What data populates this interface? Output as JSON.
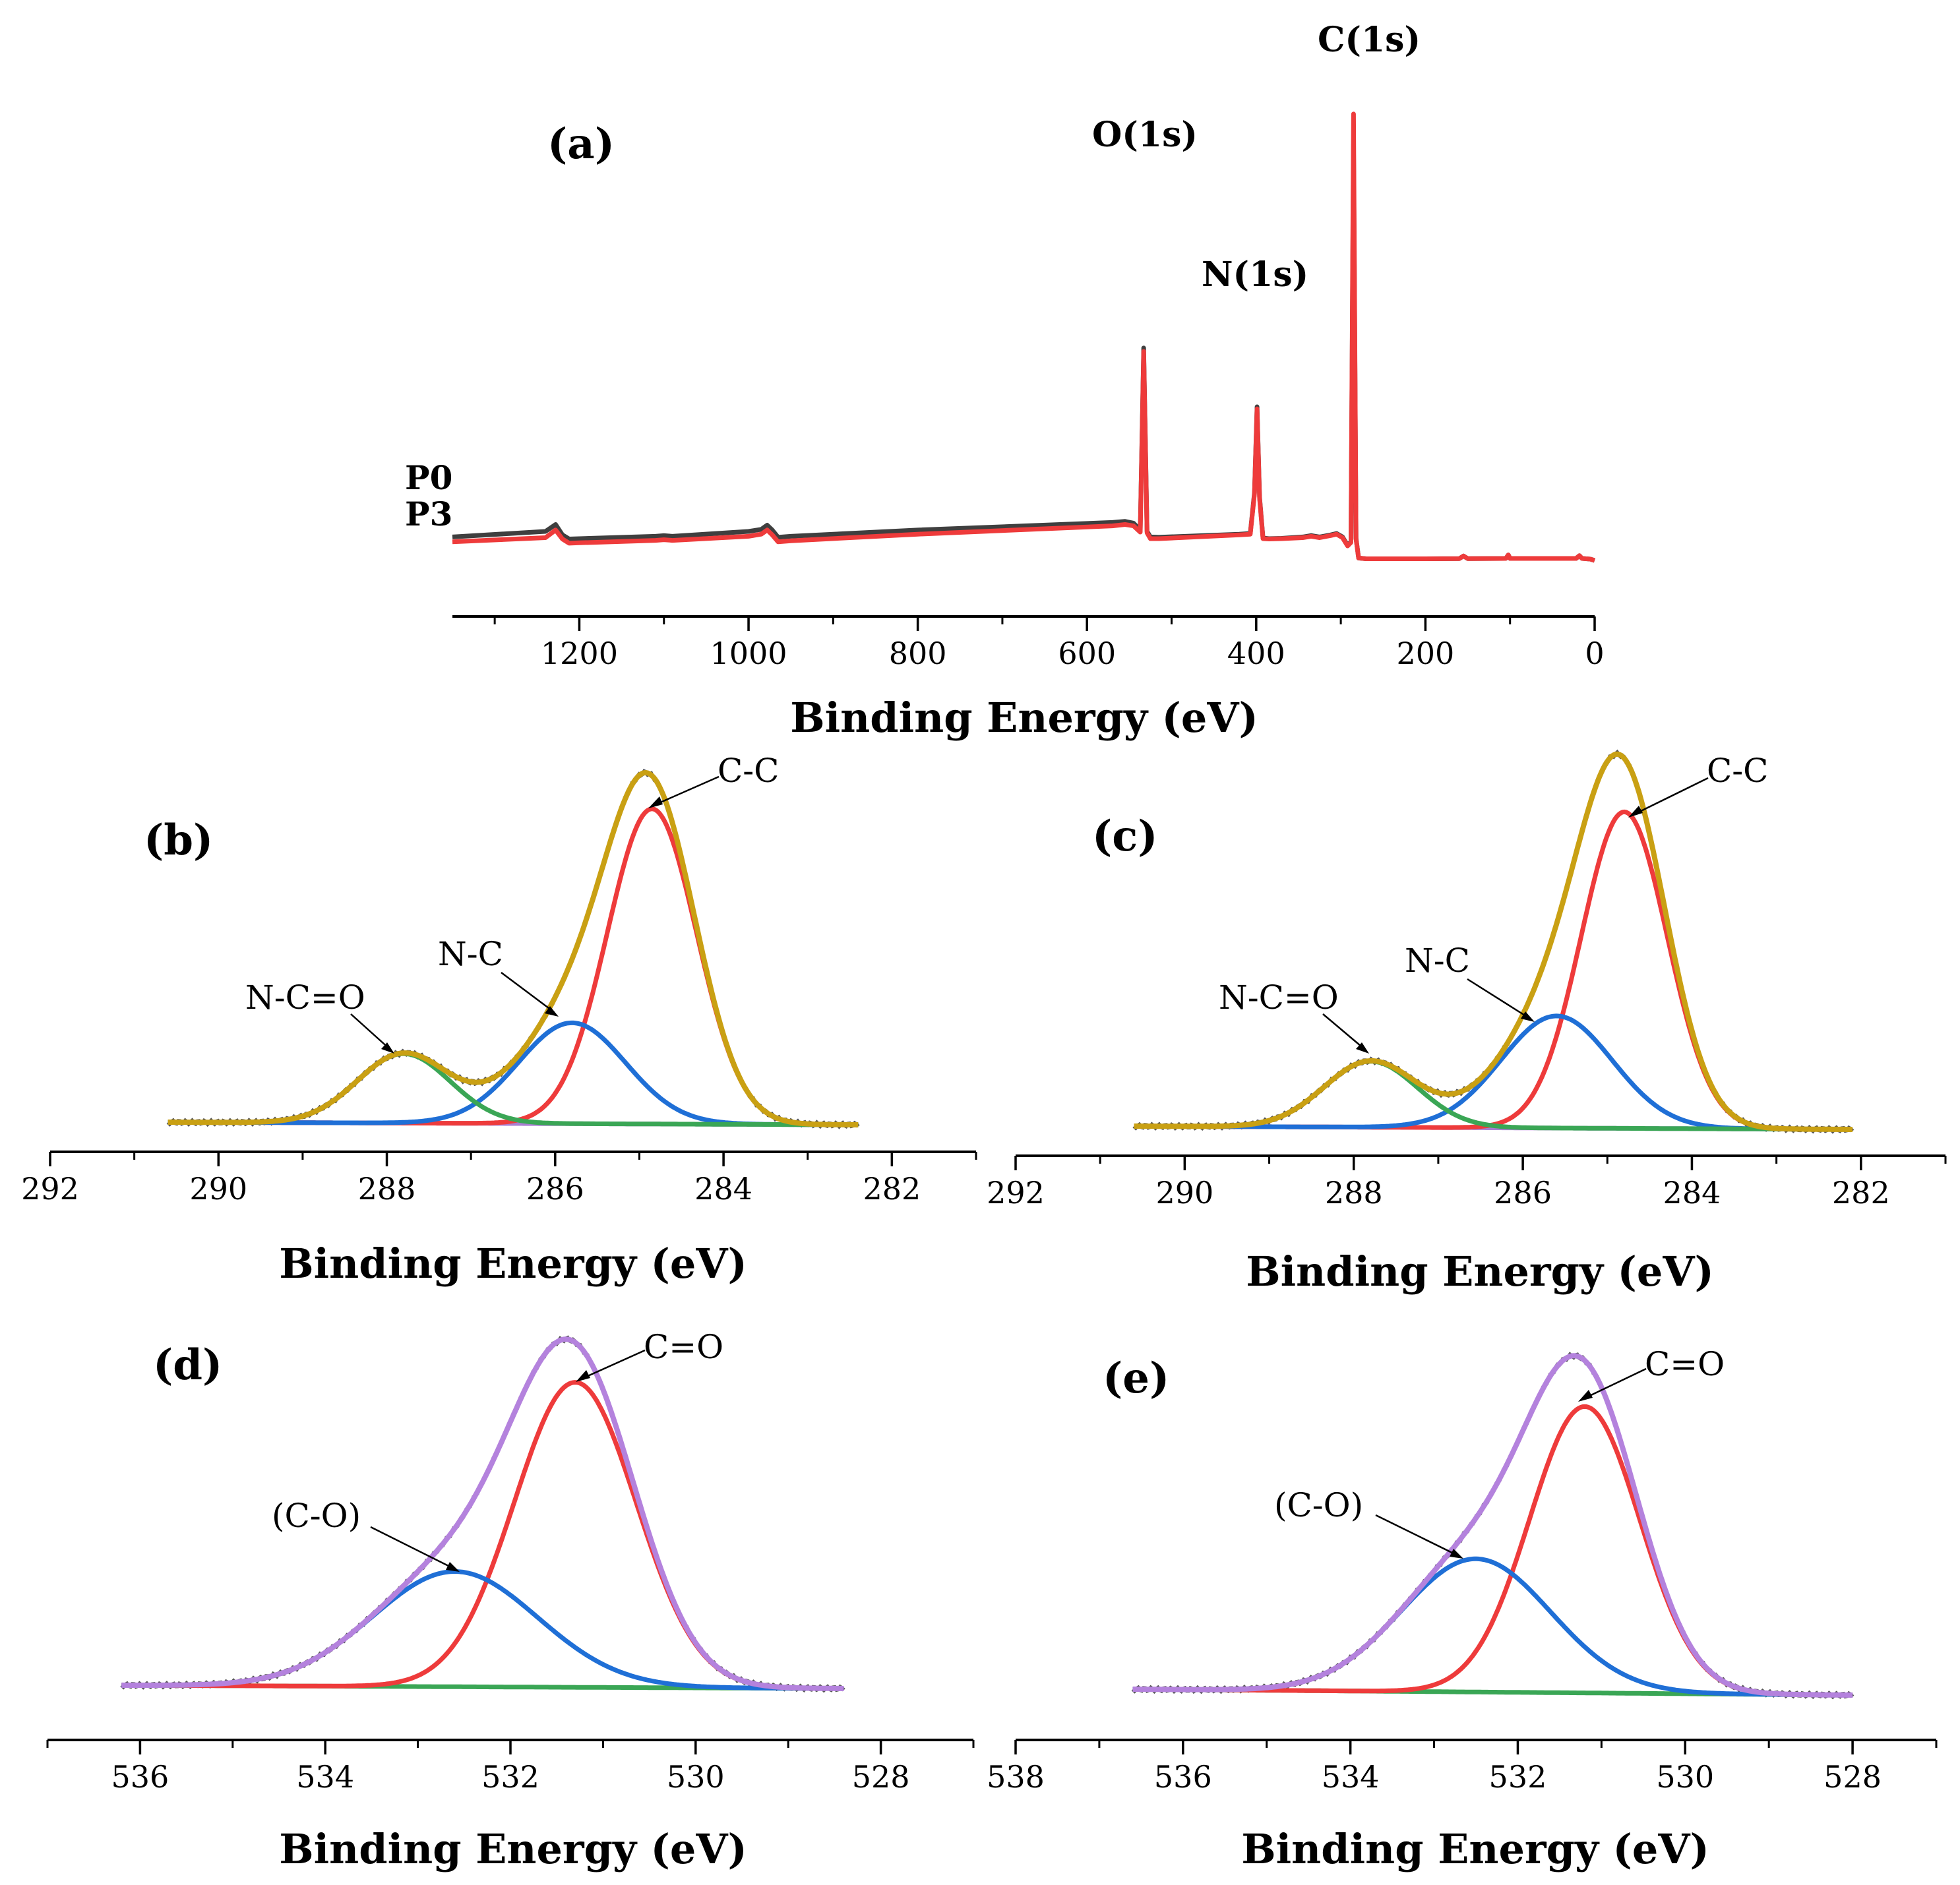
{
  "chart_data": [
    {
      "panel": "(a)",
      "type": "line",
      "xlabel": "Binding Energy (eV)",
      "xlim": [
        1350,
        0
      ],
      "xticks": [
        "1200",
        "1000",
        "800",
        "600",
        "400",
        "200",
        "0"
      ],
      "xtick_values": [
        1200,
        1000,
        800,
        600,
        400,
        200,
        0
      ],
      "series": [
        {
          "name": "P0",
          "color": "#3f3f3f",
          "x": [
            1350,
            1240,
            1228,
            1220,
            1212,
            1200,
            1110,
            1100,
            1090,
            1000,
            985,
            978,
            972,
            965,
            950,
            800,
            570,
            555,
            545,
            537,
            533,
            529,
            525,
            515,
            420,
            407,
            402,
            399,
            396,
            392,
            385,
            370,
            345,
            335,
            325,
            312,
            305,
            298,
            292,
            288,
            285,
            282,
            279,
            270,
            200,
            160,
            155,
            150,
            105,
            102,
            100,
            60,
            22,
            18,
            15,
            5,
            0
          ],
          "values": [
            3.2,
            4.0,
            5.0,
            3.5,
            2.9,
            2.95,
            3.3,
            3.4,
            3.3,
            4.0,
            4.3,
            4.9,
            4.2,
            3.15,
            3.3,
            4.2,
            5.3,
            5.45,
            5.2,
            4.2,
            30.5,
            4.0,
            3.2,
            3.15,
            3.6,
            3.7,
            9.6,
            22.0,
            9.0,
            3.05,
            2.95,
            3.0,
            3.2,
            3.4,
            3.2,
            3.5,
            3.7,
            3.2,
            2.0,
            2.5,
            60.0,
            3.0,
            0.15,
            0.05,
            0.05,
            0.07,
            0.45,
            0.08,
            0.1,
            0.6,
            0.1,
            0.1,
            0.1,
            0.5,
            0.1,
            0.0,
            -0.2
          ]
        },
        {
          "name": "P3",
          "color": "#ee3b3b",
          "x": [
            1350,
            1240,
            1228,
            1220,
            1212,
            1200,
            1110,
            1100,
            1090,
            1000,
            985,
            978,
            972,
            965,
            950,
            800,
            570,
            555,
            545,
            537,
            533,
            529,
            525,
            515,
            420,
            407,
            402,
            399,
            396,
            392,
            385,
            370,
            345,
            335,
            325,
            312,
            305,
            298,
            292,
            288,
            285,
            282,
            279,
            270,
            200,
            160,
            155,
            150,
            105,
            102,
            100,
            60,
            22,
            18,
            15,
            5,
            0
          ],
          "values": [
            2.5,
            3.1,
            4.2,
            2.9,
            2.3,
            2.35,
            2.7,
            2.8,
            2.7,
            3.3,
            3.6,
            4.2,
            3.5,
            2.5,
            2.65,
            3.6,
            4.8,
            5.0,
            4.8,
            3.9,
            30.0,
            3.8,
            2.95,
            2.95,
            3.5,
            3.6,
            9.4,
            21.7,
            8.8,
            2.95,
            2.9,
            2.95,
            3.1,
            3.3,
            3.1,
            3.4,
            3.6,
            3.1,
            1.9,
            2.4,
            64.3,
            2.9,
            0.15,
            0.05,
            0.05,
            0.07,
            0.45,
            0.08,
            0.1,
            0.6,
            0.1,
            0.1,
            0.1,
            0.5,
            0.1,
            0.0,
            -0.2
          ]
        }
      ],
      "annotations": [
        "C(1s)",
        "O(1s)",
        "N(1s)"
      ]
    },
    {
      "panel": "(b)",
      "type": "line",
      "xlabel": "Binding Energy (eV)",
      "xlim": [
        292,
        281
      ],
      "xticks": [
        "292",
        "290",
        "288",
        "286",
        "284",
        "282"
      ],
      "xtick_values": [
        292,
        290,
        288,
        286,
        284,
        282
      ],
      "data_range": [
        290.6,
        282.4
      ],
      "components": [
        {
          "name": "C-C",
          "color": "#ee3b3b",
          "center": 284.85,
          "height": 1.0,
          "fwhm": 1.25
        },
        {
          "name": "N-C",
          "color": "#1f6fd6",
          "center": 285.8,
          "height": 0.32,
          "fwhm": 1.5
        },
        {
          "name": "N-C=O",
          "color": "#3aa655",
          "center": 287.8,
          "height": 0.22,
          "fwhm": 1.3
        }
      ],
      "background_color": "#a97fd1",
      "envelope_color": "#c9a013",
      "annotations": [
        "C-C",
        "N-C",
        "N-C=O"
      ]
    },
    {
      "panel": "(c)",
      "type": "line",
      "xlabel": "Binding Energy (eV)",
      "xlim": [
        292,
        281
      ],
      "xticks": [
        "292",
        "290",
        "288",
        "286",
        "284",
        "282"
      ],
      "xtick_values": [
        292,
        290,
        288,
        286,
        284,
        282
      ],
      "data_range": [
        290.6,
        282.1
      ],
      "components": [
        {
          "name": "C-C",
          "color": "#ee3b3b",
          "center": 284.8,
          "height": 0.96,
          "fwhm": 1.2
        },
        {
          "name": "N-C",
          "color": "#1f6fd6",
          "center": 285.6,
          "height": 0.34,
          "fwhm": 1.55
        },
        {
          "name": "N-C=O",
          "color": "#3aa655",
          "center": 287.8,
          "height": 0.2,
          "fwhm": 1.3
        }
      ],
      "background_color": "#a97fd1",
      "envelope_color": "#c9a013",
      "annotations": [
        "C-C",
        "N-C",
        "N-C=O"
      ]
    },
    {
      "panel": "(d)",
      "type": "line",
      "xlabel": "Binding Energy (eV)",
      "xlim": [
        537,
        527
      ],
      "xticks": [
        "536",
        "534",
        "532",
        "530",
        "528"
      ],
      "xtick_values": [
        536,
        534,
        532,
        530,
        528
      ],
      "data_range": [
        536.2,
        528.4
      ],
      "components": [
        {
          "name": "C=O",
          "color": "#ee3b3b",
          "center": 531.3,
          "height": 0.9,
          "fwhm": 1.55
        },
        {
          "name": "(C-O)",
          "color": "#1f6fd6",
          "center": 532.6,
          "height": 0.34,
          "fwhm": 2.1
        }
      ],
      "background_color": "#3aa655",
      "envelope_color": "#b482dd",
      "annotations": [
        "C=O",
        "(C-O)"
      ]
    },
    {
      "panel": "(e)",
      "type": "line",
      "xlabel": "Binding Energy (eV)",
      "xlim": [
        538,
        527
      ],
      "xticks": [
        "538",
        "536",
        "534",
        "532",
        "530",
        "528"
      ],
      "xtick_values": [
        538,
        536,
        534,
        532,
        530,
        528
      ],
      "data_range": [
        536.6,
        528.0
      ],
      "components": [
        {
          "name": "C=O",
          "color": "#ee3b3b",
          "center": 531.2,
          "height": 0.86,
          "fwhm": 1.55
        },
        {
          "name": "(C-O)",
          "color": "#1f6fd6",
          "center": 532.5,
          "height": 0.4,
          "fwhm": 2.1
        }
      ],
      "background_color": "#3aa655",
      "envelope_color": "#b482dd",
      "annotations": [
        "C=O",
        "(C-O)"
      ]
    }
  ]
}
